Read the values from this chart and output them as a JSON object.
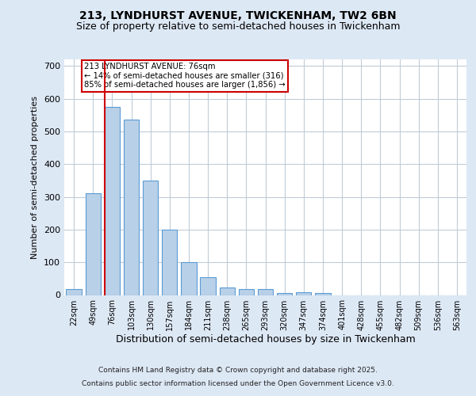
{
  "title1": "213, LYNDHURST AVENUE, TWICKENHAM, TW2 6BN",
  "title2": "Size of property relative to semi-detached houses in Twickenham",
  "xlabel": "Distribution of semi-detached houses by size in Twickenham",
  "ylabel": "Number of semi-detached properties",
  "categories": [
    "22sqm",
    "49sqm",
    "76sqm",
    "103sqm",
    "130sqm",
    "157sqm",
    "184sqm",
    "211sqm",
    "238sqm",
    "265sqm",
    "293sqm",
    "320sqm",
    "347sqm",
    "374sqm",
    "401sqm",
    "428sqm",
    "455sqm",
    "482sqm",
    "509sqm",
    "536sqm",
    "563sqm"
  ],
  "values": [
    18,
    310,
    575,
    535,
    350,
    200,
    100,
    55,
    22,
    18,
    18,
    7,
    8,
    7,
    0,
    0,
    0,
    0,
    0,
    0,
    0
  ],
  "bar_color": "#b8d0e8",
  "bar_edge_color": "#5b9bd5",
  "red_line_index": 2,
  "annotation_text": "213 LYNDHURST AVENUE: 76sqm\n← 14% of semi-detached houses are smaller (316)\n85% of semi-detached houses are larger (1,856) →",
  "annotation_box_color": "#ffffff",
  "annotation_box_edge": "#cc0000",
  "red_line_color": "#cc0000",
  "bg_color": "#dde8f5",
  "plot_bg_color": "#ffffff",
  "grid_color": "#c0ccd8",
  "ylim": [
    0,
    720
  ],
  "yticks": [
    0,
    100,
    200,
    300,
    400,
    500,
    600,
    700
  ],
  "footer1": "Contains HM Land Registry data © Crown copyright and database right 2025.",
  "footer2": "Contains public sector information licensed under the Open Government Licence v3.0."
}
